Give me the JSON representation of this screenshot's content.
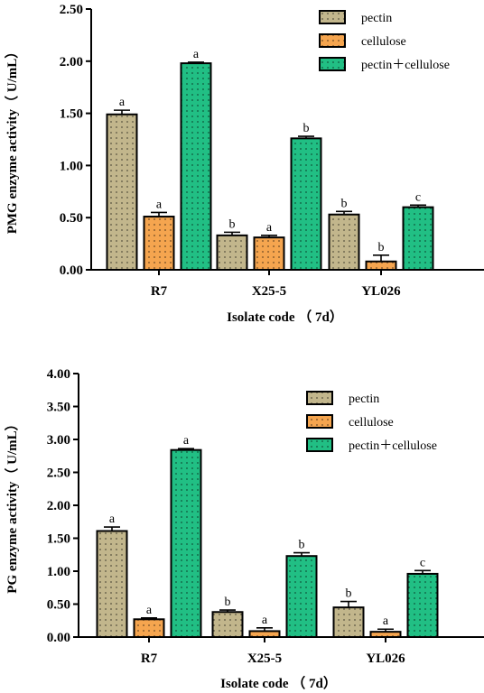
{
  "chart_data": [
    {
      "type": "bar",
      "categories": [
        "R7",
        "X25-5",
        "YL026"
      ],
      "series": [
        {
          "name": "pectin",
          "values": [
            1.49,
            0.33,
            0.53
          ],
          "errors": [
            0.04,
            0.03,
            0.03
          ],
          "labels": [
            "a",
            "b",
            "b"
          ],
          "color": "#c2b68c"
        },
        {
          "name": "cellulose",
          "values": [
            0.51,
            0.31,
            0.08
          ],
          "errors": [
            0.04,
            0.02,
            0.06
          ],
          "labels": [
            "a",
            "a",
            "b"
          ],
          "color": "#f5a54f"
        },
        {
          "name": "pectin＋cellulose",
          "values": [
            1.98,
            1.26,
            0.6
          ],
          "errors": [
            0.01,
            0.02,
            0.02
          ],
          "labels": [
            "a",
            "b",
            "c"
          ],
          "color": "#21bf84"
        }
      ],
      "xlabel": "Isolate code （ 7d）",
      "ylabel": "PMG enzyme activity（ U/mL）",
      "ylim": [
        0,
        2.5
      ],
      "yticks": [
        "0.00",
        "0.50",
        "1.00",
        "1.50",
        "2.00",
        "2.50"
      ],
      "legend_position": "top-right"
    },
    {
      "type": "bar",
      "categories": [
        "R7",
        "X25-5",
        "YL026"
      ],
      "series": [
        {
          "name": "pectin",
          "values": [
            1.61,
            0.38,
            0.45
          ],
          "errors": [
            0.06,
            0.03,
            0.09
          ],
          "labels": [
            "a",
            "b",
            "b"
          ],
          "color": "#c2b68c"
        },
        {
          "name": "cellulose",
          "values": [
            0.27,
            0.09,
            0.08
          ],
          "errors": [
            0.02,
            0.05,
            0.04
          ],
          "labels": [
            "a",
            "a",
            "a"
          ],
          "color": "#f5a54f"
        },
        {
          "name": "pectin＋cellulose",
          "values": [
            2.84,
            1.23,
            0.96
          ],
          "errors": [
            0.02,
            0.05,
            0.05
          ],
          "labels": [
            "a",
            "b",
            "c"
          ],
          "color": "#21bf84"
        }
      ],
      "xlabel": "Isolate code （ 7d）",
      "ylabel": "PG enzyme activity（ U/mL）",
      "ylim": [
        0,
        4.0
      ],
      "yticks": [
        "0.00",
        "0.50",
        "1.00",
        "1.50",
        "2.00",
        "2.50",
        "3.00",
        "3.50",
        "4.00"
      ],
      "legend_position": "top-right"
    }
  ]
}
